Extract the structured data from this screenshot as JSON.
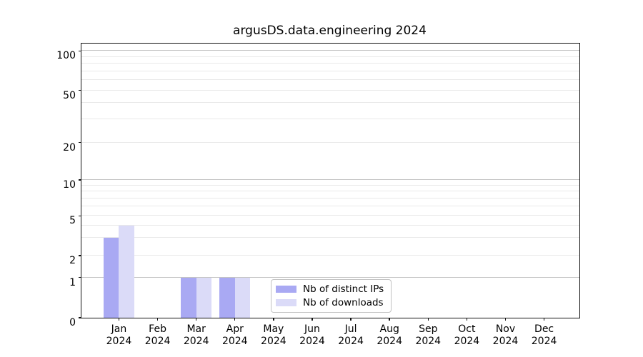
{
  "title": "argusDS.data.engineering 2024",
  "chart_data": {
    "type": "bar",
    "title": "argusDS.data.engineering 2024",
    "x_tick_months": [
      "Jan",
      "Feb",
      "Mar",
      "Apr",
      "May",
      "Jun",
      "Jul",
      "Aug",
      "Sep",
      "Oct",
      "Nov",
      "Dec"
    ],
    "x_tick_year": "2024",
    "categories": [
      "Jan 2024",
      "Feb 2024",
      "Mar 2024",
      "Apr 2024",
      "May 2024",
      "Jun 2024",
      "Jul 2024",
      "Aug 2024",
      "Sep 2024",
      "Oct 2024",
      "Nov 2024",
      "Dec 2024"
    ],
    "series": [
      {
        "name": "Nb of distinct IPs",
        "color": "#a9a9f3",
        "values": [
          3,
          0,
          1,
          1,
          0,
          0,
          0,
          0,
          0,
          0,
          0,
          0
        ]
      },
      {
        "name": "Nb of downloads",
        "color": "#dbdbf8",
        "values": [
          4,
          0,
          1,
          1,
          0,
          0,
          0,
          0,
          0,
          0,
          0,
          0
        ]
      }
    ],
    "xlabel": "",
    "ylabel": "",
    "yscale": "symlog",
    "ylim": [
      0,
      114
    ],
    "ytick_values": [
      0,
      1,
      2,
      5,
      10,
      20,
      50,
      100
    ],
    "major_gridline_values": [
      1,
      10,
      100
    ],
    "minor_gridline_values": [
      2,
      3,
      4,
      5,
      6,
      7,
      8,
      9,
      20,
      30,
      40,
      50,
      60,
      70,
      80,
      90
    ],
    "grid": "horizontal only",
    "legend_position": "inside, lower center",
    "bar_layout": "grouped pair per month"
  },
  "legend": {
    "items": [
      {
        "label": "Nb of distinct IPs",
        "color": "#a9a9f3"
      },
      {
        "label": "Nb of downloads",
        "color": "#dbdbf8"
      }
    ]
  },
  "colors": {
    "background": "#ffffff",
    "axis": "#111111",
    "major_grid": "#c4c4c4",
    "minor_grid": "#e9e9e9",
    "text": "#000000",
    "legend_border": "#c2c2c2"
  }
}
